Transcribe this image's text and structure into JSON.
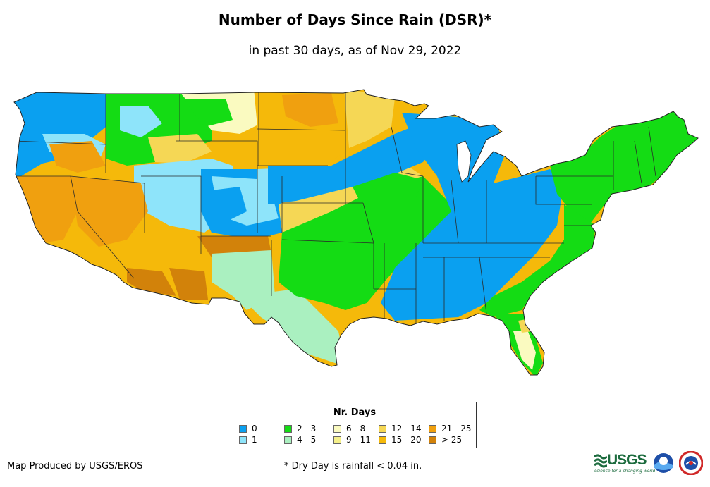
{
  "header": {
    "title": "Number of Days Since Rain (DSR)*",
    "subtitle": "in past 30 days, as of Nov 29, 2022"
  },
  "legend": {
    "title": "Nr. Days",
    "items": [
      {
        "label": "0",
        "color": "#0aa0f0"
      },
      {
        "label": "1",
        "color": "#8ee4fa"
      },
      {
        "label": "2 - 3",
        "color": "#14dc14"
      },
      {
        "label": "4 - 5",
        "color": "#aaf0c0"
      },
      {
        "label": "6 - 8",
        "color": "#fafac0"
      },
      {
        "label": "9 - 11",
        "color": "#f5f08a"
      },
      {
        "label": "12 - 14",
        "color": "#f5d755"
      },
      {
        "label": "15 - 20",
        "color": "#f5b90a"
      },
      {
        "label": "21 - 25",
        "color": "#f0a00f"
      },
      {
        "label": "> 25",
        "color": "#d2820a"
      }
    ]
  },
  "footer": {
    "credit": "Map Produced by USGS/EROS",
    "footnote": "* Dry Day is rainfall < 0.04 in."
  },
  "logos": {
    "usgs": "USGS",
    "usgs_tagline": "science for a changing world",
    "noaa": "noaa",
    "nws": "NWS"
  },
  "map": {
    "region": "Contiguous United States",
    "colors": {
      "c0": "#0aa0f0",
      "c1": "#8ee4fa",
      "c23": "#14dc14",
      "c45": "#aaf0c0",
      "c68": "#fafac0",
      "c911": "#f5f08a",
      "c1214": "#f5d755",
      "c1520": "#f5b90a",
      "c2125": "#f0a00f",
      "c25": "#d2820a"
    }
  }
}
